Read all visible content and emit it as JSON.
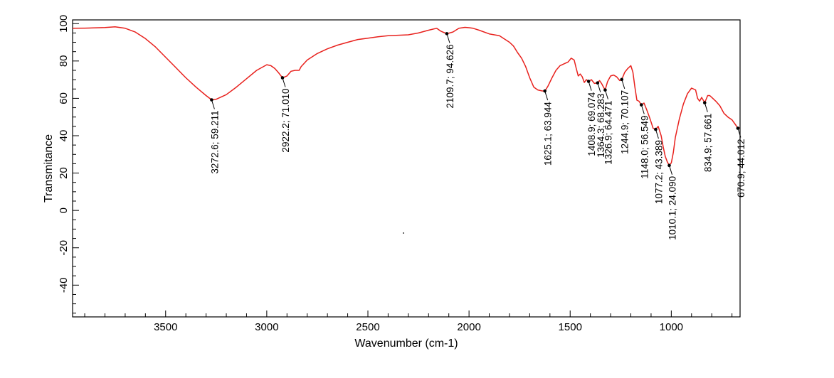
{
  "chart_data": {
    "type": "line",
    "xlabel": "Wavenumber (cm-1)",
    "ylabel": "Transmitance",
    "xlim": [
      3960,
      660
    ],
    "ylim": [
      -57,
      102
    ],
    "x_ticks": [
      3500,
      3000,
      2500,
      2000,
      1500,
      1000
    ],
    "y_ticks": [
      100,
      80,
      60,
      40,
      20,
      0,
      -20,
      -40
    ],
    "line_color": "#e8211d",
    "series": [
      {
        "x": [
          3960,
          3900,
          3800,
          3750,
          3700,
          3650,
          3600,
          3550,
          3500,
          3450,
          3400,
          3350,
          3300,
          3272.6,
          3250,
          3200,
          3150,
          3100,
          3050,
          3000,
          2980,
          2960,
          2940,
          2922.2,
          2900,
          2880,
          2860,
          2840,
          2830,
          2800,
          2750,
          2700,
          2650,
          2600,
          2550,
          2500,
          2450,
          2400,
          2350,
          2300,
          2250,
          2200,
          2180,
          2160,
          2140,
          2109.7,
          2080,
          2050,
          2020,
          2000,
          1980,
          1950,
          1900,
          1850,
          1800,
          1780,
          1760,
          1740,
          1720,
          1700,
          1680,
          1660,
          1640,
          1625.1,
          1610,
          1590,
          1570,
          1550,
          1530,
          1510,
          1495,
          1480,
          1470,
          1460,
          1450,
          1440,
          1430,
          1420,
          1408.9,
          1395,
          1380,
          1364.3,
          1355,
          1345,
          1335,
          1326.9,
          1315,
          1300,
          1285,
          1270,
          1255,
          1244.9,
          1230,
          1215,
          1200,
          1190,
          1180,
          1170,
          1160,
          1148.0,
          1135,
          1120,
          1105,
          1090,
          1077.2,
          1065,
          1050,
          1040,
          1030,
          1020,
          1010.1,
          1000,
          990,
          980,
          960,
          940,
          920,
          900,
          880,
          870,
          860,
          850,
          834.9,
          820,
          810,
          800,
          780,
          760,
          740,
          720,
          700,
          680,
          670.9,
          662
        ],
        "y": [
          97.5,
          97.6,
          97.9,
          98.3,
          97.5,
          95.5,
          92,
          87.5,
          82,
          76.5,
          71,
          66,
          61.5,
          59.2,
          59.5,
          62,
          66,
          70.5,
          75,
          78,
          77.5,
          76,
          73.5,
          71.0,
          72,
          74.5,
          75,
          75,
          77,
          80.5,
          84,
          86.5,
          88.5,
          90,
          91.5,
          92.2,
          93,
          93.5,
          93.8,
          94,
          95,
          96.5,
          97,
          97.5,
          96,
          94.6,
          95.5,
          97.5,
          98,
          97.8,
          97.5,
          96.5,
          94.5,
          93.5,
          90,
          88,
          84.5,
          81.5,
          77,
          71,
          66,
          64.5,
          64,
          63.9,
          66.5,
          71,
          75,
          77.5,
          78.5,
          79.5,
          81.5,
          80.5,
          76,
          72,
          73,
          71.5,
          68.5,
          70,
          69.1,
          70,
          68,
          68.3,
          69.5,
          68,
          66,
          64.5,
          69,
          72,
          72.5,
          71.5,
          69.5,
          70.1,
          74,
          76,
          77.5,
          74,
          66,
          59,
          58.5,
          56.5,
          57.5,
          53.5,
          49,
          44,
          43.4,
          45,
          40,
          34,
          29,
          26,
          24.1,
          25.5,
          31,
          39,
          49,
          57,
          62.5,
          65.5,
          64.5,
          60,
          58.5,
          60.5,
          57.7,
          61.5,
          61.5,
          60.5,
          58.5,
          56,
          52,
          50,
          48.5,
          45.5,
          44.0,
          44.3
        ]
      }
    ],
    "annotations": [
      {
        "x": 3272.6,
        "y": 59.211,
        "label": "3272.6; 59.211"
      },
      {
        "x": 2922.2,
        "y": 71.01,
        "label": "2922.2; 71.010"
      },
      {
        "x": 2109.7,
        "y": 94.626,
        "label": "2109.7; 94.626"
      },
      {
        "x": 1625.1,
        "y": 63.944,
        "label": "1625.1; 63.944"
      },
      {
        "x": 1408.9,
        "y": 69.074,
        "label": "1408.9; 69.074"
      },
      {
        "x": 1364.3,
        "y": 68.283,
        "label": "1364.3; 68.283"
      },
      {
        "x": 1326.9,
        "y": 64.471,
        "label": "1326.9; 64.471"
      },
      {
        "x": 1244.9,
        "y": 70.107,
        "label": "1244.9; 70.107"
      },
      {
        "x": 1148.0,
        "y": 56.549,
        "label": "1148.0; 56.549"
      },
      {
        "x": 1077.2,
        "y": 43.389,
        "label": "1077.2; 43.389"
      },
      {
        "x": 1010.1,
        "y": 24.09,
        "label": "1010.1; 24.090"
      },
      {
        "x": 834.9,
        "y": 57.661,
        "label": "834.9; 57.661"
      },
      {
        "x": 670.9,
        "y": 44.012,
        "label": "670.9; 44.012"
      }
    ]
  }
}
